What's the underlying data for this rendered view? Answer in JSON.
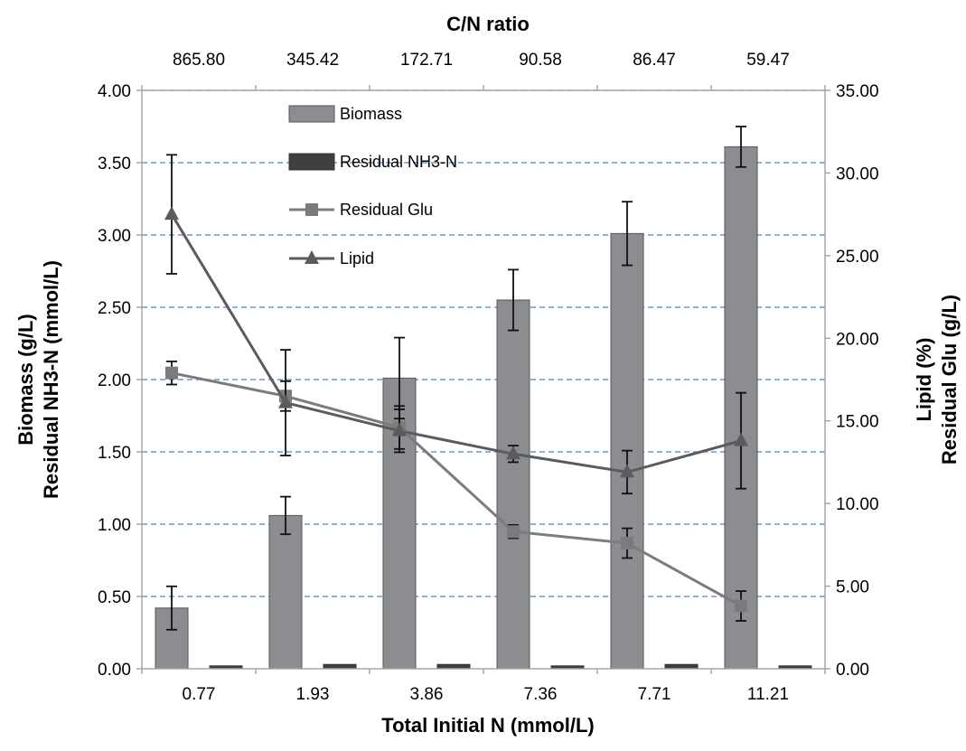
{
  "chart_data": {
    "type": "bar",
    "top_axis": {
      "title": "C/N ratio",
      "labels": [
        "865.80",
        "345.42",
        "172.71",
        "90.58",
        "86.47",
        "59.47"
      ]
    },
    "categories": [
      "0.77",
      "1.93",
      "3.86",
      "7.36",
      "7.71",
      "11.21"
    ],
    "xlabel": "Total Initial N (mmol/L)",
    "ylabel_left_lines": [
      "Biomass (g/L)",
      "Residual NH3-N (mmol/L)"
    ],
    "ylabel_right_lines": [
      "Lipid (%)",
      "Residual Glu (g/L)"
    ],
    "ylim_left": [
      0,
      4
    ],
    "ylim_right": [
      0,
      35
    ],
    "left_ticks": [
      "0.00",
      "0.50",
      "1.00",
      "1.50",
      "2.00",
      "2.50",
      "3.00",
      "3.50",
      "4.00"
    ],
    "right_ticks": [
      "0.00",
      "5.00",
      "10.00",
      "15.00",
      "20.00",
      "25.00",
      "30.00",
      "35.00"
    ],
    "grid": "horizontal dashed",
    "legend_position": "top-left",
    "series": [
      {
        "name": "Biomass",
        "kind": "bar",
        "axis": "left",
        "values": [
          0.42,
          1.06,
          2.01,
          2.55,
          3.01,
          3.61
        ],
        "error": [
          0.15,
          0.13,
          0.28,
          0.21,
          0.22,
          0.14
        ]
      },
      {
        "name": "Residual NH3-N",
        "kind": "bar",
        "axis": "left",
        "values": [
          0.02,
          0.03,
          0.03,
          0.02,
          0.03,
          0.02
        ],
        "error": [
          0.005,
          0.005,
          0.005,
          0.005,
          0.005,
          0.005
        ]
      },
      {
        "name": "Residual Glu",
        "kind": "line",
        "marker": "square",
        "axis": "right",
        "values": [
          17.9,
          16.5,
          14.6,
          8.3,
          7.6,
          3.8
        ],
        "error": [
          0.7,
          0.9,
          1.3,
          0.4,
          0.9,
          0.9
        ]
      },
      {
        "name": "Lipid",
        "kind": "line",
        "marker": "triangle",
        "axis": "right",
        "values": [
          27.5,
          16.1,
          14.4,
          13.0,
          11.9,
          13.8
        ],
        "error": [
          3.6,
          3.2,
          1.3,
          0.5,
          1.3,
          2.9
        ]
      }
    ],
    "colors": {
      "biomass_bar": "#8c8d90",
      "nh3_bar": "#3f3f42",
      "glu_line": "#7b7b7e",
      "lipid_line": "#5b5b5e",
      "grid": "#4f81bd",
      "axis": "#a6a6a6"
    }
  }
}
